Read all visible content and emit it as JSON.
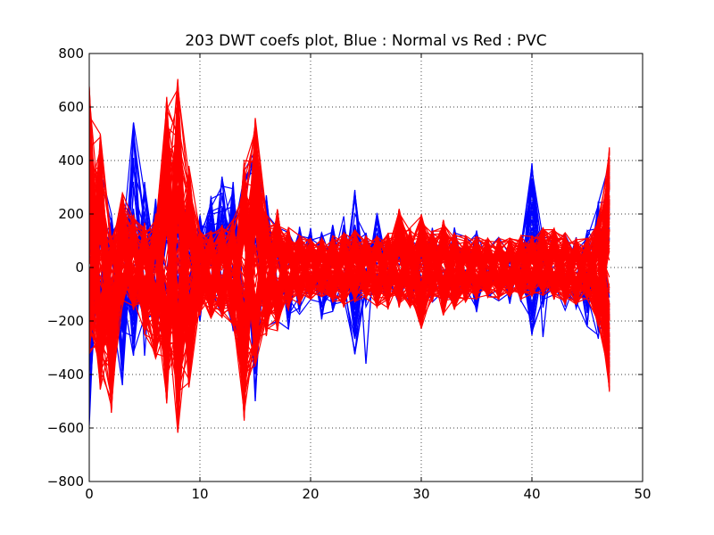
{
  "chart_data": {
    "type": "line",
    "title": "203 DWT coefs plot, Blue : Normal vs Red : PVC",
    "xlabel": "",
    "ylabel": "",
    "xlim": [
      0,
      50
    ],
    "ylim": [
      -800,
      800
    ],
    "xticks": [
      0,
      10,
      20,
      30,
      40,
      50
    ],
    "xtick_labels": [
      "0",
      "10",
      "20",
      "30",
      "40",
      "50"
    ],
    "yticks": [
      -800,
      -600,
      -400,
      -200,
      0,
      200,
      400,
      600,
      800
    ],
    "ytick_labels": [
      "−800",
      "−600",
      "−400",
      "−200",
      "0",
      "200",
      "400",
      "600",
      "800"
    ],
    "grid": true,
    "legend": "none",
    "x": [
      0,
      1,
      2,
      3,
      4,
      5,
      6,
      7,
      8,
      9,
      10,
      11,
      12,
      13,
      14,
      15,
      16,
      17,
      18,
      19,
      20,
      21,
      22,
      23,
      24,
      25,
      26,
      27,
      28,
      29,
      30,
      31,
      32,
      33,
      34,
      35,
      36,
      37,
      38,
      39,
      40,
      41,
      42,
      43,
      44,
      45,
      46,
      47
    ],
    "series_groups": [
      {
        "class": "Normal",
        "color": "#0000ff",
        "count": 40,
        "envelope_max": [
          180,
          380,
          200,
          250,
          550,
          320,
          300,
          400,
          300,
          180,
          200,
          280,
          350,
          320,
          380,
          560,
          280,
          170,
          150,
          170,
          150,
          140,
          180,
          200,
          290,
          130,
          210,
          120,
          130,
          130,
          120,
          150,
          130,
          150,
          120,
          140,
          110,
          120,
          100,
          110,
          400,
          110,
          150,
          130,
          120,
          140,
          250,
          390
        ],
        "envelope_min": [
          -590,
          -150,
          -180,
          -440,
          -330,
          -200,
          -230,
          -300,
          -150,
          -180,
          -200,
          -170,
          -180,
          -250,
          -370,
          -500,
          -220,
          -200,
          -230,
          -180,
          -160,
          -200,
          -180,
          -140,
          -360,
          -150,
          -130,
          -140,
          -140,
          -150,
          -140,
          -130,
          -140,
          -160,
          -130,
          -170,
          -120,
          -130,
          -140,
          -130,
          -260,
          -170,
          -130,
          -160,
          -160,
          -240,
          -280,
          -420
        ],
        "series": [
          {
            "values": [
              -590,
              380,
              -150,
              -440,
              540,
              -330,
              250,
              -300,
              290,
              -170,
              160,
              -90,
              340,
              -200,
              380,
              -500,
              270,
              -150,
              140,
              -130,
              120,
              -100,
              150,
              -110,
              290,
              -360,
              200,
              -120,
              110,
              -140,
              100,
              -110,
              120,
              -130,
              110,
              -120,
              90,
              -100,
              80,
              -90,
              390,
              -260,
              140,
              -120,
              100,
              -170,
              240,
              390
            ]
          },
          {
            "values": [
              -300,
              230,
              -110,
              180,
              -250,
              280,
              -150,
              210,
              180,
              -90,
              120,
              -110,
              200,
              -130,
              310,
              430,
              -160,
              120,
              -80,
              100,
              -90,
              110,
              -70,
              90,
              -180,
              80,
              -100,
              70,
              -60,
              90,
              -80,
              70,
              -60,
              80,
              -90,
              70,
              -60,
              80,
              -60,
              70,
              290,
              -150,
              90,
              -80,
              70,
              -110,
              160,
              -180
            ]
          },
          {
            "values": [
              -150,
              -120,
              160,
              -200,
              110,
              -150,
              200,
              300,
              -80,
              160,
              -140,
              190,
              -170,
              260,
              -370,
              300,
              -110,
              150,
              -120,
              90,
              -100,
              130,
              -140,
              120,
              -150,
              110,
              -90,
              100,
              -110,
              80,
              -110,
              90,
              -100,
              110,
              -80,
              100,
              -70,
              90,
              -100,
              80,
              -190,
              100,
              -120,
              90,
              -130,
              80,
              -200,
              310
            ]
          },
          {
            "values": [
              160,
              -90,
              120,
              -100,
              -330,
              320,
              -230,
              380,
              -150,
              110,
              -90,
              260,
              -130,
              320,
              -300,
              500,
              -220,
              -200,
              -230,
              110,
              -120,
              80,
              -90,
              160,
              -110,
              90,
              -80,
              110,
              -100,
              120,
              -90,
              80,
              -110,
              90,
              -100,
              80,
              -90,
              100,
              -80,
              90,
              -140,
              80,
              -90,
              110,
              -100,
              130,
              -150,
              250
            ]
          },
          {
            "values": [
              100,
              300,
              -60,
              90,
              200,
              -120,
              160,
              -100,
              150,
              -60,
              180,
              -80,
              -180,
              220,
              -160,
              380,
              140,
              -120,
              90,
              -80,
              70,
              -60,
              100,
              -80,
              160,
              -70,
              110,
              -60,
              80,
              -70,
              60,
              -80,
              70,
              -60,
              80,
              -50,
              70,
              -60,
              70,
              -80,
              130,
              -90,
              70,
              -60,
              80,
              -60,
              120,
              -260
            ]
          },
          {
            "values": [
              -250,
              150,
              90,
              -120,
              210,
              -90,
              -180,
              250,
              -120,
              130,
              -200,
              150,
              -110,
              180,
              -250,
              350,
              -150,
              80,
              -110,
              120,
              -80,
              100,
              -60,
              90,
              -90,
              130,
              -70,
              80,
              -90,
              60,
              -70,
              100,
              -80,
              70,
              -90,
              80,
              -60,
              70,
              -90,
              60,
              180,
              -70,
              80,
              -90,
              60,
              -80,
              190,
              -330
            ]
          },
          {
            "values": [
              50,
              180,
              -150,
              120,
              -100,
              150,
              -90,
              -200,
              140,
              -80,
              100,
              -70,
              -100,
              150,
              -200,
              280,
              -90,
              110,
              -70,
              80,
              -100,
              90,
              -80,
              70,
              -60,
              80,
              -90,
              60,
              -80,
              70,
              -60,
              90,
              -70,
              80,
              -60,
              70,
              -80,
              60,
              -70,
              60,
              -80,
              90,
              -60,
              70,
              -80,
              90,
              -100,
              150
            ]
          },
          {
            "values": [
              -80,
              100,
              -60,
              80,
              -120,
              90,
              -100,
              160,
              -60,
              80,
              -60,
              90,
              -80,
              120,
              -150,
              200,
              -100,
              70,
              -60,
              90,
              -70,
              60,
              -80,
              70,
              -90,
              60,
              -70,
              80,
              -60,
              70,
              -80,
              60,
              -90,
              70,
              -80,
              90,
              -70,
              60,
              -80,
              70,
              -90,
              60,
              -70,
              80,
              -60,
              70,
              -120,
              220
            ]
          }
        ]
      },
      {
        "class": "PVC",
        "color": "#ff0000",
        "count": 200,
        "envelope_max": [
          680,
          500,
          120,
          280,
          200,
          170,
          200,
          640,
          720,
          380,
          140,
          140,
          160,
          180,
          400,
          560,
          200,
          220,
          150,
          120,
          110,
          110,
          120,
          130,
          140,
          120,
          120,
          130,
          220,
          150,
          200,
          140,
          180,
          130,
          120,
          120,
          110,
          110,
          110,
          120,
          120,
          150,
          150,
          130,
          110,
          110,
          190,
          450
        ],
        "envelope_min": [
          -330,
          -460,
          -545,
          -150,
          -160,
          -250,
          -340,
          -510,
          -620,
          -450,
          -180,
          -190,
          -190,
          -220,
          -575,
          -370,
          -260,
          -240,
          -160,
          -140,
          -120,
          -110,
          -140,
          -150,
          -130,
          -120,
          -150,
          -160,
          -150,
          -150,
          -230,
          -130,
          -180,
          -160,
          -130,
          -120,
          -110,
          -120,
          -110,
          -120,
          -110,
          -110,
          -120,
          -140,
          -140,
          -120,
          -220,
          -470
        ]
      }
    ]
  }
}
